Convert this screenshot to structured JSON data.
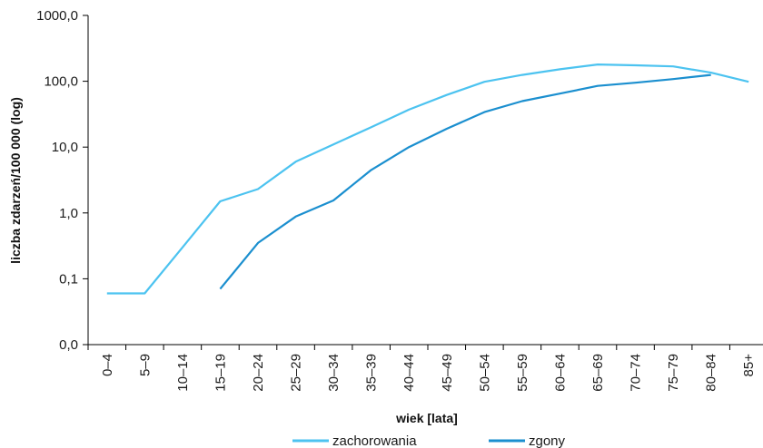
{
  "chart_data": {
    "type": "line",
    "yscale": "log",
    "ylabel": "liczba zdarzeń/100 000 (log)",
    "xlabel": "wiek [lata]",
    "categories": [
      "0–4",
      "5–9",
      "10–14",
      "15–19",
      "20–24",
      "25–29",
      "30–34",
      "35–39",
      "40–44",
      "45–49",
      "50–54",
      "55–59",
      "60–64",
      "65–69",
      "70–74",
      "75–79",
      "80–84",
      "85+"
    ],
    "y_ticks": [
      {
        "value": 0.01,
        "label": "0,0"
      },
      {
        "value": 0.1,
        "label": "0,1"
      },
      {
        "value": 1,
        "label": "1,0"
      },
      {
        "value": 10,
        "label": "10,0"
      },
      {
        "value": 100,
        "label": "100,0"
      },
      {
        "value": 1000,
        "label": "1000,0"
      }
    ],
    "ylim": [
      0.01,
      1000
    ],
    "grid": false,
    "legend_position": "bottom",
    "series": [
      {
        "name": "zachorowania",
        "color": "#4cc3f0",
        "values": [
          0.06,
          0.06,
          0.3,
          1.5,
          2.3,
          6.0,
          11.0,
          20.0,
          37.0,
          62.0,
          98.0,
          125.0,
          152.0,
          180.0,
          175.0,
          168.0,
          135.0,
          98.0
        ]
      },
      {
        "name": "zgony",
        "color": "#1b8fcf",
        "values": [
          null,
          null,
          null,
          0.07,
          0.35,
          0.88,
          1.55,
          4.5,
          10.0,
          19.0,
          34.0,
          50.0,
          65.0,
          85.0,
          95.0,
          108.0,
          125.0,
          null
        ]
      }
    ]
  }
}
